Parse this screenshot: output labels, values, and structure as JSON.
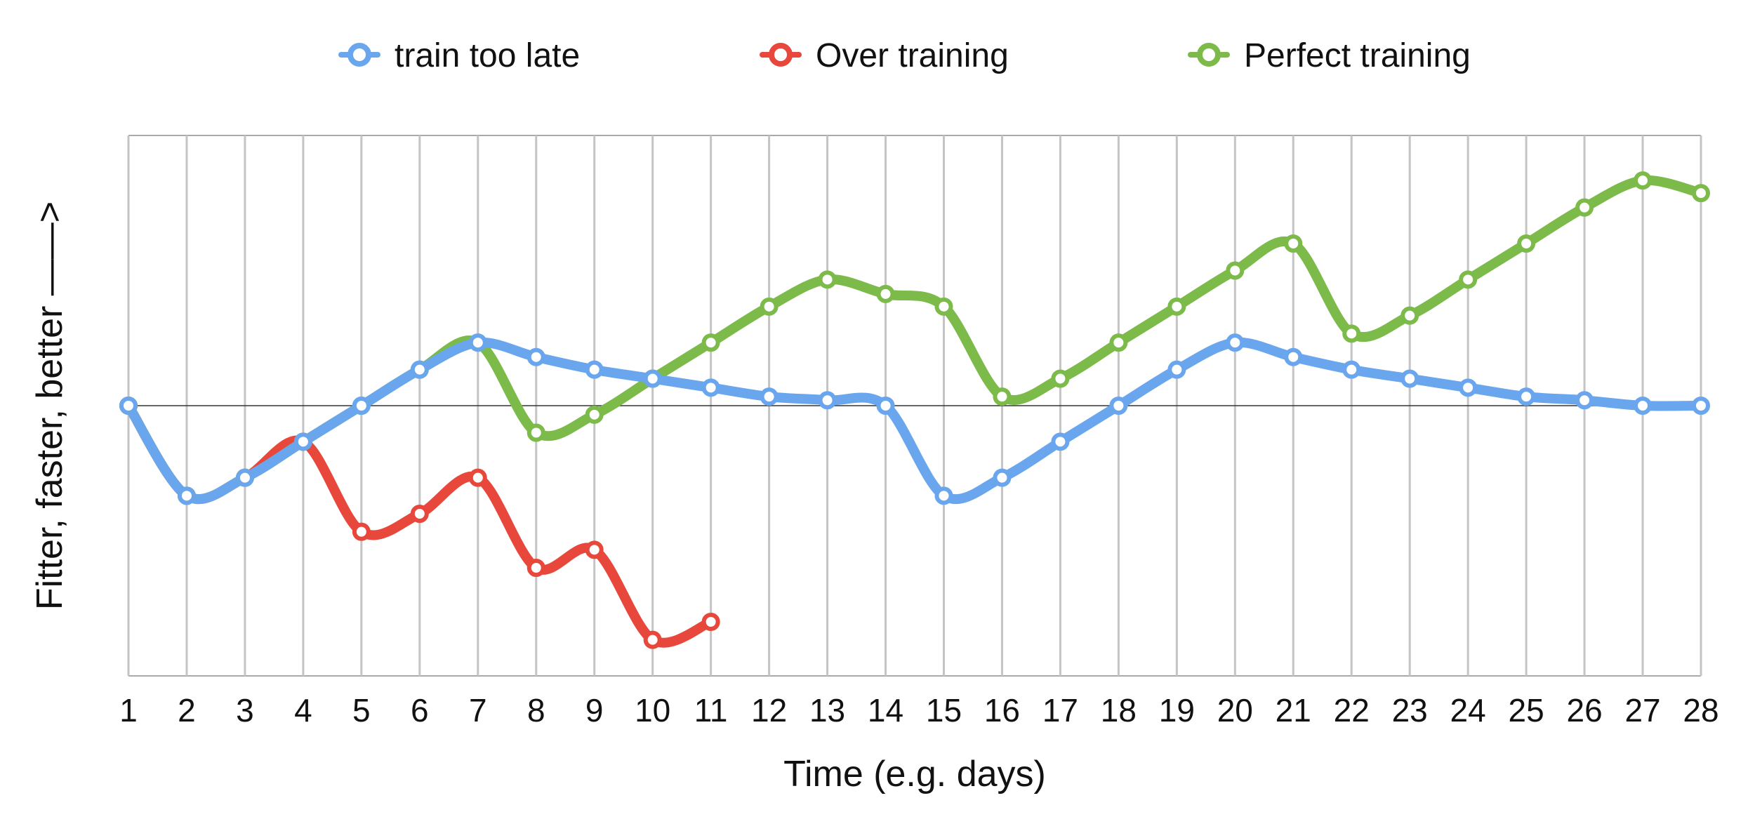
{
  "chart_data": {
    "type": "line",
    "title": "",
    "xlabel": "Time (e.g. days)",
    "ylabel": "Fitter, faster, better ——>",
    "x": [
      1,
      2,
      3,
      4,
      5,
      6,
      7,
      8,
      9,
      10,
      11,
      12,
      13,
      14,
      15,
      16,
      17,
      18,
      19,
      20,
      21,
      22,
      23,
      24,
      25,
      26,
      27,
      28
    ],
    "xlim": [
      1,
      28
    ],
    "ylim": [
      -15,
      15
    ],
    "baseline": 0,
    "grid": "vertical",
    "legend_position": "top-center",
    "series": [
      {
        "name": "train too late",
        "color": "#6aa6ee",
        "x": [
          1,
          2,
          3,
          4,
          5,
          6,
          7,
          8,
          9,
          10,
          11,
          12,
          13,
          14,
          15,
          16,
          17,
          18,
          19,
          20,
          21,
          22,
          23,
          24,
          25,
          26,
          27,
          28
        ],
        "values": [
          0,
          -5,
          -4,
          -2,
          0,
          2,
          3.5,
          2.7,
          2,
          1.5,
          1,
          0.5,
          0.3,
          0,
          -5,
          -4,
          -2,
          0,
          2,
          3.5,
          2.7,
          2,
          1.5,
          1,
          0.5,
          0.3,
          0,
          0
        ]
      },
      {
        "name": "Over training",
        "color": "#e8473b",
        "x": [
          1,
          2,
          3,
          4,
          5,
          6,
          7,
          8,
          9,
          10,
          11
        ],
        "values": [
          0,
          -5,
          -4,
          -2,
          -7,
          -6,
          -4,
          -9,
          -8,
          -13,
          -12
        ]
      },
      {
        "name": "Perfect training",
        "color": "#7cba4a",
        "x": [
          1,
          2,
          3,
          4,
          5,
          6,
          7,
          8,
          9,
          10,
          11,
          12,
          13,
          14,
          15,
          16,
          17,
          18,
          19,
          20,
          21,
          22,
          23,
          24,
          25,
          26,
          27,
          28
        ],
        "values": [
          0,
          -5,
          -4,
          -2,
          0,
          2,
          3.5,
          -1.5,
          -0.5,
          1.5,
          3.5,
          5.5,
          7,
          6.2,
          5.5,
          0.5,
          1.5,
          3.5,
          5.5,
          7.5,
          9,
          4,
          5,
          7,
          9,
          11,
          12.5,
          11.8
        ]
      }
    ]
  }
}
